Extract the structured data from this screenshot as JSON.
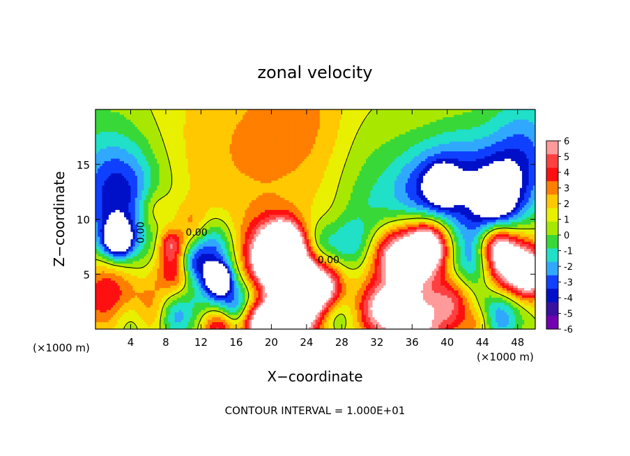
{
  "chart_data": {
    "type": "heatmap",
    "title": "zonal velocity",
    "xlabel": "X−coordinate",
    "ylabel": "Z−coordinate",
    "x_unit_left": "(×1000 m)",
    "x_unit_right": "(×1000 m)",
    "footer": "CONTOUR INTERVAL = 1.000E+01",
    "xlim": [
      0,
      50
    ],
    "ylim": [
      0,
      20
    ],
    "xticks": [
      4,
      8,
      12,
      16,
      20,
      24,
      28,
      32,
      36,
      40,
      44,
      48
    ],
    "yticks": [
      5,
      10,
      15
    ],
    "colorbar": {
      "levels": [
        6,
        5,
        4,
        3,
        2,
        1,
        0,
        -1,
        -2,
        -3,
        -4,
        -5,
        -6
      ],
      "colors": [
        "#ff9a9a",
        "#ff4040",
        "#ff1010",
        "#ff7f00",
        "#ffc800",
        "#e8f000",
        "#a8e800",
        "#38d838",
        "#20e0c8",
        "#30a8ff",
        "#1040ff",
        "#0010c8",
        "#3a10a0",
        "#7000b0"
      ]
    },
    "contour_labels": [
      {
        "text": "0.00",
        "x": 11.5,
        "y": 8.5
      },
      {
        "text": "0.00",
        "x": 26.5,
        "y": 6.0
      },
      {
        "text": "0.00",
        "x": 5.5,
        "y": 8.8,
        "rotated": true
      }
    ],
    "blobs": [
      {
        "x": 25,
        "y": 9,
        "r": 30,
        "v": 0.3
      },
      {
        "x": 16,
        "y": 16,
        "r": 9,
        "v": 1.6
      },
      {
        "x": 24,
        "y": 19,
        "r": 6,
        "v": 1.6
      },
      {
        "x": 3,
        "y": 9,
        "r": 5,
        "v": -3.2
      },
      {
        "x": 2.5,
        "y": 8.2,
        "r": 1.6,
        "v": -8
      },
      {
        "x": 1,
        "y": 15,
        "r": 6,
        "v": -2.2
      },
      {
        "x": 3,
        "y": 13,
        "r": 4,
        "v": -2.5
      },
      {
        "x": 1.5,
        "y": 3.5,
        "r": 3.5,
        "v": 4.8
      },
      {
        "x": 6,
        "y": 1.5,
        "r": 2.6,
        "v": 4.2
      },
      {
        "x": 9,
        "y": 5.5,
        "r": 2.2,
        "v": 4.6
      },
      {
        "x": 8.5,
        "y": 7.8,
        "r": 1.3,
        "v": 4
      },
      {
        "x": 6.5,
        "y": 10.8,
        "r": 2,
        "v": 2.5
      },
      {
        "x": 11,
        "y": 9.5,
        "r": 2,
        "v": 2.4
      },
      {
        "x": 4.5,
        "y": 1,
        "r": 2.4,
        "v": -3.8
      },
      {
        "x": 9,
        "y": 1.2,
        "r": 2.2,
        "v": -4.2
      },
      {
        "x": 13.5,
        "y": 4.5,
        "r": 3,
        "v": -4.5
      },
      {
        "x": 14,
        "y": 4.6,
        "r": 1.2,
        "v": -8
      },
      {
        "x": 13,
        "y": 7.8,
        "r": 2.5,
        "v": -3.6
      },
      {
        "x": 11,
        "y": 6,
        "r": 1.6,
        "v": -3.5
      },
      {
        "x": 16,
        "y": 2.2,
        "r": 2.2,
        "v": -4
      },
      {
        "x": 14,
        "y": 0.3,
        "r": 1.8,
        "v": 5
      },
      {
        "x": 20,
        "y": 6.5,
        "r": 3.2,
        "v": 8
      },
      {
        "x": 23,
        "y": 4.5,
        "r": 3.2,
        "v": 8
      },
      {
        "x": 21.5,
        "y": 7.8,
        "r": 2,
        "v": 7
      },
      {
        "x": 26,
        "y": 3.6,
        "r": 2.2,
        "v": 5
      },
      {
        "x": 22,
        "y": 1,
        "r": 3.5,
        "v": 7.5
      },
      {
        "x": 18.5,
        "y": 0.8,
        "r": 2,
        "v": 6
      },
      {
        "x": 19,
        "y": 3,
        "r": 1.8,
        "v": -3
      },
      {
        "x": 27,
        "y": 1.4,
        "r": 2,
        "v": -2.6
      },
      {
        "x": 25.5,
        "y": 7.5,
        "r": 2.2,
        "v": -3.2
      },
      {
        "x": 29,
        "y": 7.8,
        "r": 2.3,
        "v": -2.7
      },
      {
        "x": 36,
        "y": 6.5,
        "r": 3.2,
        "v": 8
      },
      {
        "x": 38,
        "y": 7.8,
        "r": 2.2,
        "v": 7
      },
      {
        "x": 33.5,
        "y": 6.8,
        "r": 2.2,
        "v": 2.8
      },
      {
        "x": 36,
        "y": 1,
        "r": 4,
        "v": 8
      },
      {
        "x": 32,
        "y": 2,
        "r": 2.2,
        "v": 4
      },
      {
        "x": 40.5,
        "y": 2.5,
        "r": 2.2,
        "v": 3.5
      },
      {
        "x": 37,
        "y": 3.8,
        "r": 3,
        "v": -2.6
      },
      {
        "x": 43,
        "y": 6,
        "r": 2.5,
        "v": -3.8
      },
      {
        "x": 45,
        "y": 9,
        "r": 3,
        "v": -2.5
      },
      {
        "x": 47,
        "y": 6,
        "r": 3,
        "v": 8
      },
      {
        "x": 45.5,
        "y": 7.8,
        "r": 2,
        "v": 6
      },
      {
        "x": 49.5,
        "y": 5,
        "r": 2,
        "v": 6.5
      },
      {
        "x": 46,
        "y": 1.5,
        "r": 2.6,
        "v": -4.5
      },
      {
        "x": 43.5,
        "y": 0.6,
        "r": 1.6,
        "v": 2.5
      },
      {
        "x": 41,
        "y": 13.5,
        "r": 4.8,
        "v": -4.6
      },
      {
        "x": 46,
        "y": 12,
        "r": 3.5,
        "v": -5
      },
      {
        "x": 37,
        "y": 12,
        "r": 4,
        "v": -3.4
      },
      {
        "x": 39.5,
        "y": 13.2,
        "r": 1.6,
        "v": -5.8
      },
      {
        "x": 46,
        "y": 11.8,
        "r": 1,
        "v": -6.5
      },
      {
        "x": 46.3,
        "y": 11.8,
        "r": 0.45,
        "v": -9
      },
      {
        "x": 48.5,
        "y": 15,
        "r": 4,
        "v": -3
      },
      {
        "x": 31,
        "y": 11,
        "r": 3.5,
        "v": -1.5
      },
      {
        "x": 31,
        "y": 16,
        "r": 5,
        "v": -1.2
      },
      {
        "x": 49,
        "y": 19,
        "r": 5,
        "v": -2
      }
    ]
  }
}
